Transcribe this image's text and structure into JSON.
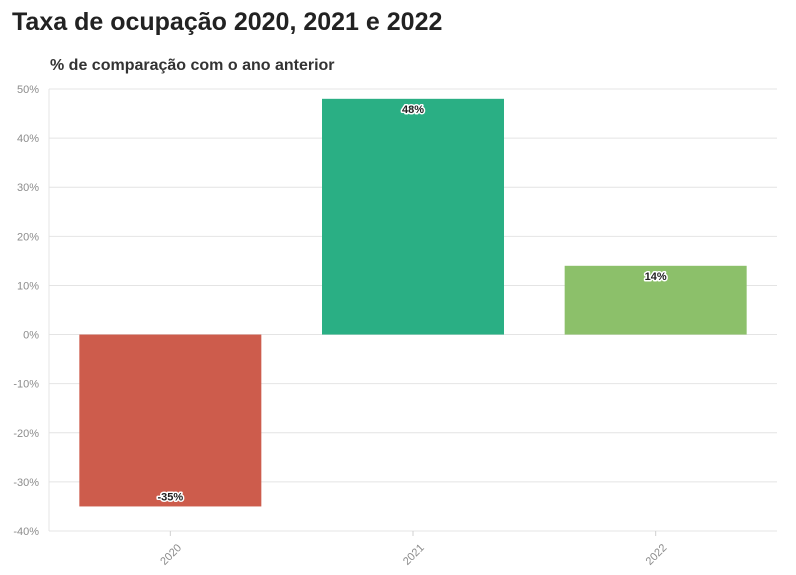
{
  "title": "Taxa de ocupação 2020, 2021 e 2022",
  "subtitle": "% de comparação com o ano anterior",
  "chart_data": {
    "type": "bar",
    "title": "Taxa de ocupação 2020, 2021 e 2022",
    "subtitle": "% de comparação com o ano anterior",
    "categories": [
      "2020",
      "2021",
      "2022"
    ],
    "values": [
      -35,
      48,
      14
    ],
    "value_labels": [
      "-35%",
      "48%",
      "14%"
    ],
    "colors": [
      "#cd5c4c",
      "#2aaf84",
      "#8cc06a"
    ],
    "ylim": [
      -40,
      50
    ],
    "y_ticks": [
      50,
      40,
      30,
      20,
      10,
      0,
      -10,
      -20,
      -30,
      -40
    ],
    "y_tick_labels": [
      "50%",
      "40%",
      "30%",
      "20%",
      "10%",
      "0%",
      "-10%",
      "-20%",
      "-30%",
      "-40%"
    ],
    "grid": true,
    "xlabel": "",
    "ylabel": ""
  }
}
